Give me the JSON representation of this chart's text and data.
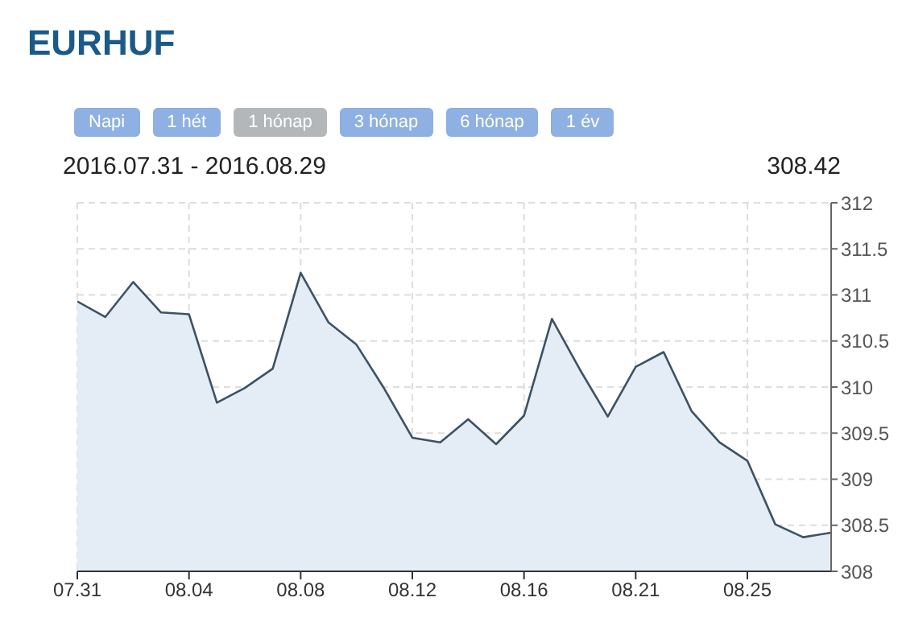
{
  "chart_data": {
    "type": "area",
    "title": "EURHUF",
    "subtitle": "2016.07.31 - 2016.08.29",
    "annotations": [
      "Napi",
      "1 hét",
      "1 hónap",
      "3 hónap",
      "6 hónap",
      "1 év",
      "308.42"
    ],
    "categories": [
      "07.31",
      null,
      null,
      null,
      "08.04",
      null,
      null,
      null,
      "08.08",
      null,
      null,
      null,
      "08.12",
      null,
      null,
      null,
      "08.16",
      null,
      null,
      null,
      "08.21",
      null,
      null,
      null,
      "08.25",
      null,
      null,
      null
    ],
    "series": [
      {
        "color": "#3d5263",
        "values": [
          310.93,
          310.76,
          311.14,
          310.81,
          310.79,
          309.83,
          309.99,
          310.2,
          311.24,
          310.7,
          310.46,
          309.98,
          309.45,
          309.4,
          309.65,
          309.38,
          309.69,
          310.74,
          310.19,
          309.68,
          310.22,
          310.38,
          309.74,
          309.4,
          309.2,
          308.51,
          308.37,
          308.42
        ]
      }
    ],
    "ylim": [
      308,
      312
    ],
    "yticks": [
      308,
      308.5,
      309,
      309.5,
      310,
      310.5,
      311,
      311.5,
      312
    ],
    "grid": true,
    "legend": false,
    "marker": "none",
    "line_style": "solid"
  }
}
